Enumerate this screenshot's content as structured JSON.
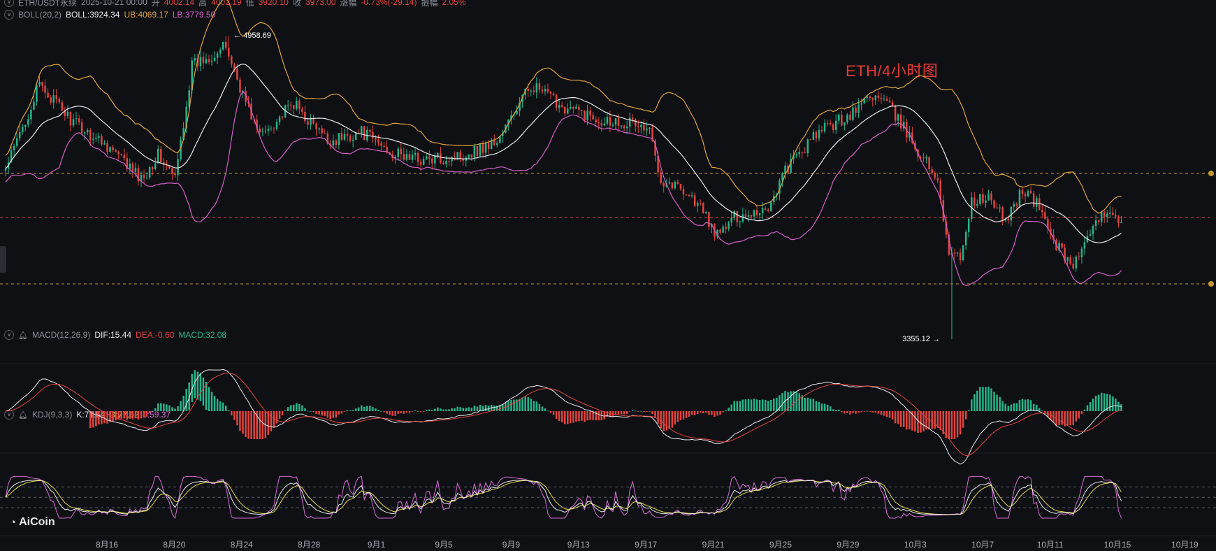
{
  "header_main": {
    "symbol": "ETH/USDT永续",
    "datetime": "2025-10-21 00:00",
    "open_label": "开",
    "open": "4002.14",
    "high_label": "高",
    "high": "4002.19",
    "low_label": "低",
    "low": "3920.10",
    "close_label": "收",
    "close": "3973.00",
    "change_label": "涨幅",
    "change": "-0.73%(-29.14)",
    "amp_label": "振幅",
    "amp": "2.05%"
  },
  "header_boll": {
    "name": "BOLL(20,2)",
    "boll": "BOLL:3924.34",
    "ub": "UB:4069.17",
    "lb": "LB:3779.50"
  },
  "header_macd": {
    "name": "MACD(12,26,9)",
    "dif": "DIF:15.44",
    "dea": "DEA:-0.60",
    "macd": "MACD:32.08"
  },
  "header_kdj": {
    "name": "KDJ(9,3,3)",
    "k": "K:71.54",
    "d": "D:77.62",
    "j": "J:59.37"
  },
  "watermark": "ETH/4小时图",
  "logo": "AiCoin",
  "annotations": {
    "high_price": "← 4958.69",
    "low_price": "3355.12 →"
  },
  "colors": {
    "up": "#24b58c",
    "down": "#e2443f",
    "boll_mid": "#e6e8ec",
    "boll_ub": "#e0a33b",
    "boll_lb": "#d35fc7",
    "k": "#e6e8ec",
    "d": "#e6d84a",
    "j": "#d86ad6",
    "dash_gold": "#c39a2a",
    "dash_red": "#d24a4a"
  },
  "chart_data": {
    "type": "candlestick",
    "interval": "4h",
    "x_ticks": [
      "8月16",
      "8月20",
      "8月24",
      "8月28",
      "9月1",
      "9月5",
      "9月9",
      "9月13",
      "9月17",
      "9月21",
      "9月25",
      "9月29",
      "10月3",
      "10月7",
      "10月11",
      "10月15",
      "10月19"
    ],
    "close_path": [
      {
        "day": 0,
        "close": 4250
      },
      {
        "day": 2,
        "close": 4700
      },
      {
        "day": 4,
        "close": 4500
      },
      {
        "day": 6,
        "close": 4380
      },
      {
        "day": 8,
        "close": 4200
      },
      {
        "day": 9,
        "close": 4330
      },
      {
        "day": 10,
        "close": 4200
      },
      {
        "day": 11,
        "close": 4800
      },
      {
        "day": 13,
        "close": 4900
      },
      {
        "day": 14,
        "close": 4650
      },
      {
        "day": 15,
        "close": 4430
      },
      {
        "day": 17,
        "close": 4600
      },
      {
        "day": 19,
        "close": 4400
      },
      {
        "day": 21,
        "close": 4450
      },
      {
        "day": 23,
        "close": 4330
      },
      {
        "day": 25,
        "close": 4300
      },
      {
        "day": 27,
        "close": 4330
      },
      {
        "day": 29,
        "close": 4400
      },
      {
        "day": 30,
        "close": 4550
      },
      {
        "day": 31,
        "close": 4700
      },
      {
        "day": 33,
        "close": 4580
      },
      {
        "day": 35,
        "close": 4520
      },
      {
        "day": 37,
        "close": 4500
      },
      {
        "day": 38,
        "close": 4450
      },
      {
        "day": 38.7,
        "close": 4200
      },
      {
        "day": 40,
        "close": 4150
      },
      {
        "day": 41,
        "close": 4050
      },
      {
        "day": 42,
        "close": 3900
      },
      {
        "day": 43,
        "close": 4000
      },
      {
        "day": 45,
        "close": 4050
      },
      {
        "day": 46,
        "close": 4250
      },
      {
        "day": 48,
        "close": 4450
      },
      {
        "day": 50,
        "close": 4550
      },
      {
        "day": 51,
        "close": 4650
      },
      {
        "day": 52,
        "close": 4600
      },
      {
        "day": 53,
        "close": 4470
      },
      {
        "day": 54,
        "close": 4330
      },
      {
        "day": 55,
        "close": 4200
      },
      {
        "day": 55.7,
        "close": 3800
      },
      {
        "day": 56.3,
        "close": 3780
      },
      {
        "day": 57,
        "close": 4080
      },
      {
        "day": 58,
        "close": 4100
      },
      {
        "day": 59,
        "close": 3980
      },
      {
        "day": 60,
        "close": 4150
      },
      {
        "day": 61,
        "close": 4050
      },
      {
        "day": 62,
        "close": 3850
      },
      {
        "day": 63,
        "close": 3750
      },
      {
        "day": 64,
        "close": 3900
      },
      {
        "day": 65,
        "close": 4050
      },
      {
        "day": 66,
        "close": 3973
      }
    ],
    "extremes": {
      "high": 4958.69,
      "low": 3355.12
    },
    "price_range": [
      3300,
      5000
    ],
    "boll_last": {
      "mid": 3924.34,
      "ub": 4069.17,
      "lb": 3779.5
    },
    "macd_last": {
      "dif": 15.44,
      "dea": -0.6,
      "macd": 32.08
    },
    "kdj_last": {
      "k": 71.54,
      "d": 77.62,
      "j": 59.37
    }
  }
}
